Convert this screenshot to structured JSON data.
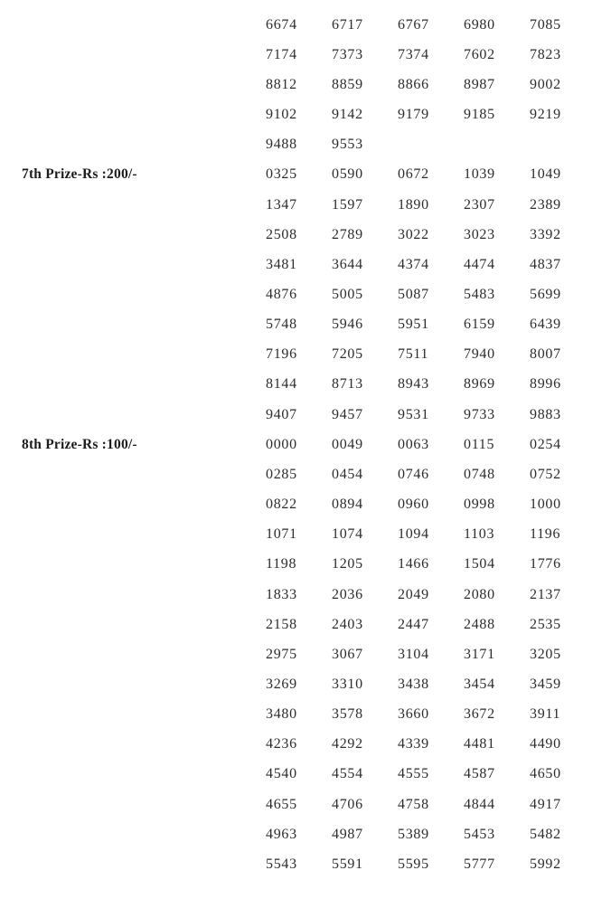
{
  "page": {
    "background_color": "#ffffff",
    "text_color": "#2c2c2c",
    "label_color": "#1c1c1c"
  },
  "sections": [
    {
      "label": "",
      "rows": [
        [
          "6674",
          "6717",
          "6767",
          "6980",
          "7085"
        ],
        [
          "7174",
          "7373",
          "7374",
          "7602",
          "7823"
        ],
        [
          "8812",
          "8859",
          "8866",
          "8987",
          "9002"
        ],
        [
          "9102",
          "9142",
          "9179",
          "9185",
          "9219"
        ],
        [
          "9488",
          "9553"
        ]
      ]
    },
    {
      "label": "7th Prize-Rs :200/-",
      "rows": [
        [
          "0325",
          "0590",
          "0672",
          "1039",
          "1049"
        ],
        [
          "1347",
          "1597",
          "1890",
          "2307",
          "2389"
        ],
        [
          "2508",
          "2789",
          "3022",
          "3023",
          "3392"
        ],
        [
          "3481",
          "3644",
          "4374",
          "4474",
          "4837"
        ],
        [
          "4876",
          "5005",
          "5087",
          "5483",
          "5699"
        ],
        [
          "5748",
          "5946",
          "5951",
          "6159",
          "6439"
        ],
        [
          "7196",
          "7205",
          "7511",
          "7940",
          "8007"
        ],
        [
          "8144",
          "8713",
          "8943",
          "8969",
          "8996"
        ],
        [
          "9407",
          "9457",
          "9531",
          "9733",
          "9883"
        ]
      ]
    },
    {
      "label": "8th Prize-Rs :100/-",
      "rows": [
        [
          "0000",
          "0049",
          "0063",
          "0115",
          "0254"
        ],
        [
          "0285",
          "0454",
          "0746",
          "0748",
          "0752"
        ],
        [
          "0822",
          "0894",
          "0960",
          "0998",
          "1000"
        ],
        [
          "1071",
          "1074",
          "1094",
          "1103",
          "1196"
        ],
        [
          "1198",
          "1205",
          "1466",
          "1504",
          "1776"
        ],
        [
          "1833",
          "2036",
          "2049",
          "2080",
          "2137"
        ],
        [
          "2158",
          "2403",
          "2447",
          "2488",
          "2535"
        ],
        [
          "2975",
          "3067",
          "3104",
          "3171",
          "3205"
        ],
        [
          "3269",
          "3310",
          "3438",
          "3454",
          "3459"
        ],
        [
          "3480",
          "3578",
          "3660",
          "3672",
          "3911"
        ],
        [
          "4236",
          "4292",
          "4339",
          "4481",
          "4490"
        ],
        [
          "4540",
          "4554",
          "4555",
          "4587",
          "4650"
        ],
        [
          "4655",
          "4706",
          "4758",
          "4844",
          "4917"
        ],
        [
          "4963",
          "4987",
          "5389",
          "5453",
          "5482"
        ],
        [
          "5543",
          "5591",
          "5595",
          "5777",
          "5992"
        ]
      ]
    }
  ]
}
